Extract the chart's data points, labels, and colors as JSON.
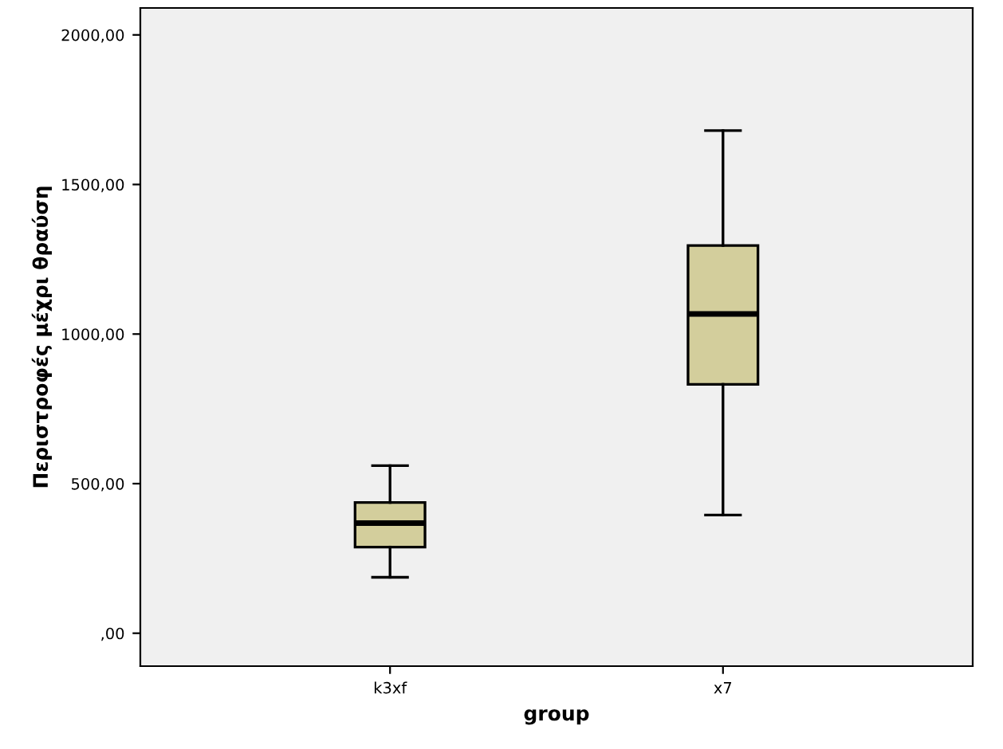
{
  "chart_data": {
    "type": "box",
    "xlabel": "group",
    "ylabel": "Περιστροφές μέχρι θραύση",
    "categories": [
      "k3xf",
      "x7"
    ],
    "boxes": [
      {
        "low": 187,
        "q1": 288,
        "median": 368,
        "q3": 437,
        "high": 560
      },
      {
        "low": 395,
        "q1": 832,
        "median": 1067,
        "q3": 1296,
        "high": 1680
      }
    ],
    "color": "#d3ce9c",
    "ylim": [
      -110,
      2090
    ],
    "yticks": [
      {
        "value": 0,
        "label": ",00"
      },
      {
        "value": 500,
        "label": "500,00"
      },
      {
        "value": 1000,
        "label": "1000,00"
      },
      {
        "value": 1500,
        "label": "1500,00"
      },
      {
        "value": 2000,
        "label": "2000,00"
      }
    ],
    "grid": false
  }
}
